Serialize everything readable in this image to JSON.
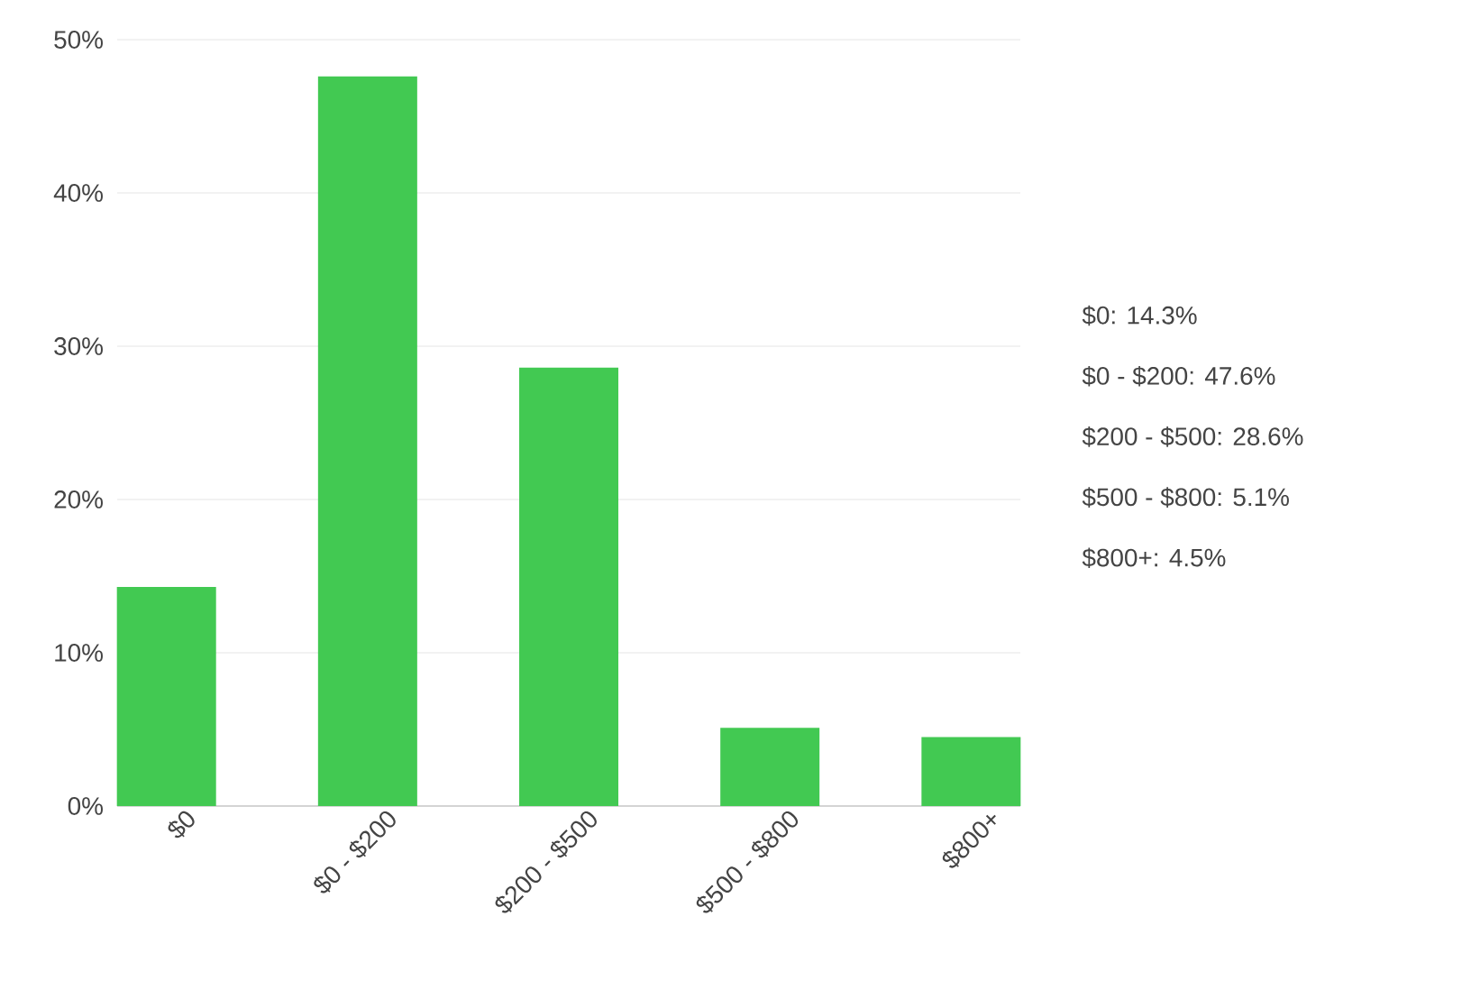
{
  "chart_data": {
    "type": "bar",
    "categories": [
      "$0",
      "$0 - $200",
      "$200 - $500",
      "$500 - $800",
      "$800+"
    ],
    "values": [
      14.3,
      47.6,
      28.6,
      5.1,
      4.5
    ],
    "annotations": [
      "$0: 14.3%",
      "$0 - $200: 47.6%",
      "$200 - $500: 28.6%",
      "$500 - $800: 5.1%",
      "$800+: 4.5%"
    ],
    "color": "#42c952",
    "ylim": [
      0,
      50
    ],
    "yticks": [
      {
        "value": 0,
        "label": "0%"
      },
      {
        "value": 10,
        "label": "10%"
      },
      {
        "value": 20,
        "label": "20%"
      },
      {
        "value": 30,
        "label": "30%"
      },
      {
        "value": 40,
        "label": "40%"
      },
      {
        "value": 50,
        "label": "50%"
      }
    ],
    "grid": "y"
  }
}
